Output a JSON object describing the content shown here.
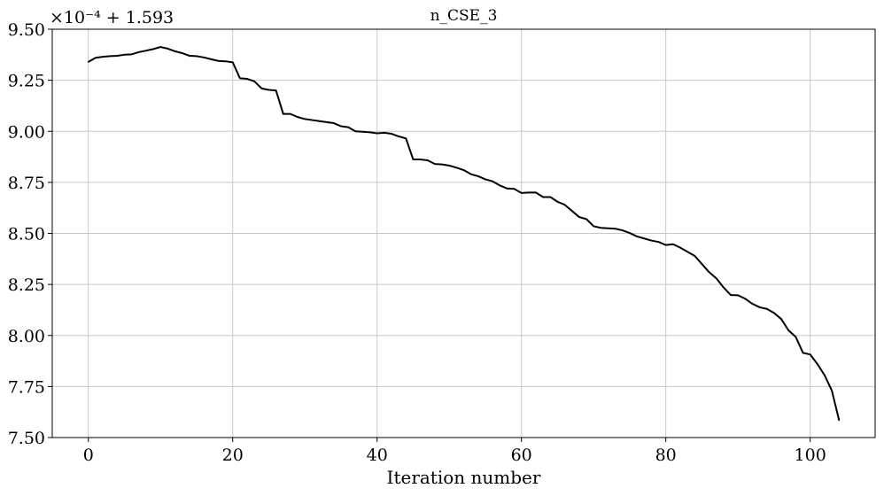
{
  "chart_data": {
    "type": "line",
    "title": "n_CSE_3",
    "xlabel": "Iteration number",
    "ylabel": "",
    "offset_label": "×10⁻⁴ + 1.593",
    "xlim": [
      -5,
      109
    ],
    "ylim": [
      7.5,
      9.5
    ],
    "x_ticks": [
      0,
      20,
      40,
      60,
      80,
      100
    ],
    "y_ticks": [
      7.5,
      7.75,
      8.0,
      8.25,
      8.5,
      8.75,
      9.0,
      9.25,
      9.5
    ],
    "x_tick_labels": [
      "0",
      "20",
      "40",
      "60",
      "80",
      "100"
    ],
    "y_tick_labels": [
      "7.50",
      "7.75",
      "8.00",
      "8.25",
      "8.50",
      "8.75",
      "9.00",
      "9.25",
      "9.50"
    ],
    "grid": true,
    "series": [
      {
        "color": "#000000",
        "x": [
          0,
          1,
          2,
          3,
          4,
          5,
          6,
          7,
          8,
          9,
          10,
          11,
          12,
          13,
          14,
          15,
          16,
          17,
          18,
          19,
          20,
          21,
          22,
          23,
          24,
          25,
          26,
          27,
          28,
          29,
          30,
          31,
          32,
          33,
          34,
          35,
          36,
          37,
          38,
          39,
          40,
          41,
          42,
          43,
          44,
          45,
          46,
          47,
          48,
          49,
          50,
          51,
          52,
          53,
          54,
          55,
          56,
          57,
          58,
          59,
          60,
          61,
          62,
          63,
          64,
          65,
          66,
          67,
          68,
          69,
          70,
          71,
          72,
          73,
          74,
          75,
          76,
          77,
          78,
          79,
          80,
          81,
          82,
          83,
          84,
          85,
          86,
          87,
          88,
          89,
          90,
          91,
          92,
          93,
          94,
          95,
          96,
          97,
          98,
          99,
          100,
          101,
          102,
          103,
          104
        ],
        "y": [
          9.34,
          9.36,
          9.365,
          9.368,
          9.37,
          9.375,
          9.377,
          9.388,
          9.395,
          9.403,
          9.413,
          9.405,
          9.392,
          9.383,
          9.37,
          9.368,
          9.362,
          9.353,
          9.345,
          9.343,
          9.338,
          9.26,
          9.257,
          9.245,
          9.21,
          9.203,
          9.2,
          9.085,
          9.085,
          9.07,
          9.06,
          9.055,
          9.05,
          9.045,
          9.04,
          9.025,
          9.02,
          9.0,
          8.998,
          8.995,
          8.99,
          8.993,
          8.988,
          8.975,
          8.965,
          8.862,
          8.862,
          8.858,
          8.84,
          8.838,
          8.832,
          8.822,
          8.81,
          8.79,
          8.78,
          8.765,
          8.755,
          8.735,
          8.72,
          8.718,
          8.698,
          8.7,
          8.7,
          8.678,
          8.678,
          8.655,
          8.64,
          8.61,
          8.58,
          8.57,
          8.535,
          8.527,
          8.525,
          8.523,
          8.515,
          8.502,
          8.485,
          8.475,
          8.465,
          8.458,
          8.443,
          8.447,
          8.43,
          8.41,
          8.39,
          8.35,
          8.31,
          8.28,
          8.235,
          8.198,
          8.197,
          8.18,
          8.155,
          8.138,
          8.13,
          8.11,
          8.08,
          8.025,
          7.993,
          7.915,
          7.907,
          7.86,
          7.805,
          7.73,
          7.585
        ]
      }
    ]
  }
}
